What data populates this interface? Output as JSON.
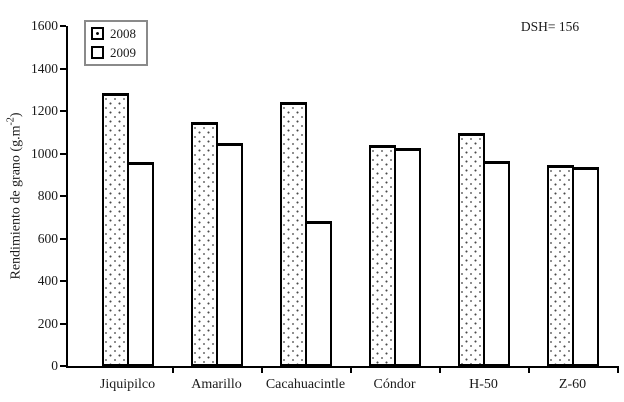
{
  "chart_data": {
    "type": "bar",
    "title": "",
    "xlabel": "",
    "ylabel": "Rendimiento de grano (g.m-2)",
    "ylabel_display": {
      "main": "Rendimiento de grano (g.m",
      "sup": "-2",
      "close": ")"
    },
    "categories": [
      "Jiquipilco",
      "Amarillo",
      "Cacahuacintle",
      "Cóndor",
      "H-50",
      "Z-60"
    ],
    "series": [
      {
        "name": "2008",
        "style": "dotted-pattern",
        "values": [
          1285,
          1150,
          1240,
          1040,
          1095,
          945
        ]
      },
      {
        "name": "2009",
        "style": "plain-white",
        "values": [
          960,
          1050,
          680,
          1025,
          965,
          935
        ]
      }
    ],
    "ylim": [
      0,
      1600
    ],
    "ytick_step": 200,
    "yticks": [
      0,
      200,
      400,
      600,
      800,
      1000,
      1200,
      1400,
      1600
    ],
    "grid": false,
    "legend_position": "top-left-inside",
    "annotation": "DSH= 156",
    "colors": {
      "axis": "#000000",
      "bar_fill": "#ffffff",
      "bar_border": "#000000",
      "legend_border": "#8a8a8a",
      "text": "#1a1a1a"
    }
  }
}
